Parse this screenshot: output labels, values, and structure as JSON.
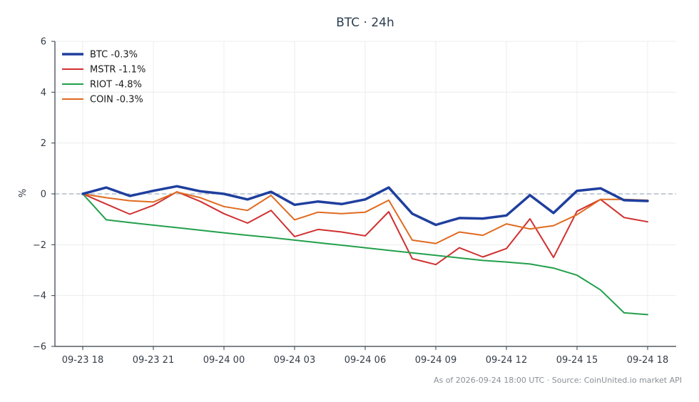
{
  "chart_data": {
    "type": "line",
    "title": "BTC · 24h",
    "ylabel": "%",
    "xlabel": "",
    "ylim": [
      -6,
      6
    ],
    "yticks": [
      -6,
      -4,
      -2,
      0,
      2,
      4,
      6
    ],
    "ytick_labels": [
      "−6",
      "−4",
      "−2",
      "0",
      "2",
      "4",
      "6"
    ],
    "x": [
      "09-23 18",
      "09-23 19",
      "09-23 20",
      "09-23 21",
      "09-23 22",
      "09-23 23",
      "09-24 00",
      "09-24 01",
      "09-24 02",
      "09-24 03",
      "09-24 04",
      "09-24 05",
      "09-24 06",
      "09-24 07",
      "09-24 08",
      "09-24 09",
      "09-24 10",
      "09-24 11",
      "09-24 12",
      "09-24 13",
      "09-24 14",
      "09-24 15",
      "09-24 16",
      "09-24 17",
      "09-24 18"
    ],
    "xtick_labels": [
      "09-23 18",
      "09-23 21",
      "09-24 00",
      "09-24 03",
      "09-24 06",
      "09-24 09",
      "09-24 12",
      "09-24 15",
      "09-24 18"
    ],
    "grid": true,
    "zero_line": true,
    "legend_position": "top-left",
    "series": [
      {
        "name": "BTC -0.3%",
        "color": "#1f3f9e",
        "width": 3.5,
        "values": [
          0.0,
          0.25,
          -0.08,
          0.12,
          0.3,
          0.1,
          0.0,
          -0.22,
          0.08,
          -0.43,
          -0.3,
          -0.4,
          -0.22,
          0.25,
          -0.78,
          -1.22,
          -0.95,
          -0.97,
          -0.85,
          -0.05,
          -0.75,
          0.12,
          0.22,
          -0.25,
          -0.28
        ]
      },
      {
        "name": "MSTR -1.1%",
        "color": "#d03030",
        "width": 2,
        "values": [
          0.0,
          -0.4,
          -0.8,
          -0.45,
          0.08,
          -0.3,
          -0.78,
          -1.15,
          -0.65,
          -1.68,
          -1.4,
          -1.5,
          -1.65,
          -0.7,
          -2.55,
          -2.78,
          -2.12,
          -2.48,
          -2.15,
          -0.98,
          -2.5,
          -0.68,
          -0.22,
          -0.93,
          -1.1
        ]
      },
      {
        "name": "RIOT -4.8%",
        "color": "#22a04b",
        "width": 2,
        "values": [
          0.0,
          -1.02,
          -1.13,
          -1.23,
          -1.33,
          -1.43,
          -1.53,
          -1.63,
          -1.72,
          -1.82,
          -1.92,
          -2.02,
          -2.12,
          -2.22,
          -2.32,
          -2.42,
          -2.52,
          -2.62,
          -2.68,
          -2.76,
          -2.92,
          -3.2,
          -3.78,
          -4.68,
          -4.75
        ]
      },
      {
        "name": "COIN -0.3%",
        "color": "#e06a1f",
        "width": 2,
        "values": [
          0.0,
          -0.15,
          -0.27,
          -0.32,
          0.07,
          -0.15,
          -0.5,
          -0.65,
          -0.06,
          -1.02,
          -0.72,
          -0.78,
          -0.72,
          -0.25,
          -1.82,
          -1.95,
          -1.5,
          -1.63,
          -1.18,
          -1.38,
          -1.25,
          -0.82,
          -0.22,
          -0.22,
          -0.25
        ]
      }
    ],
    "footer": "As of 2026-09-24 18:00 UTC · Source: CoinUnited.io market API"
  }
}
